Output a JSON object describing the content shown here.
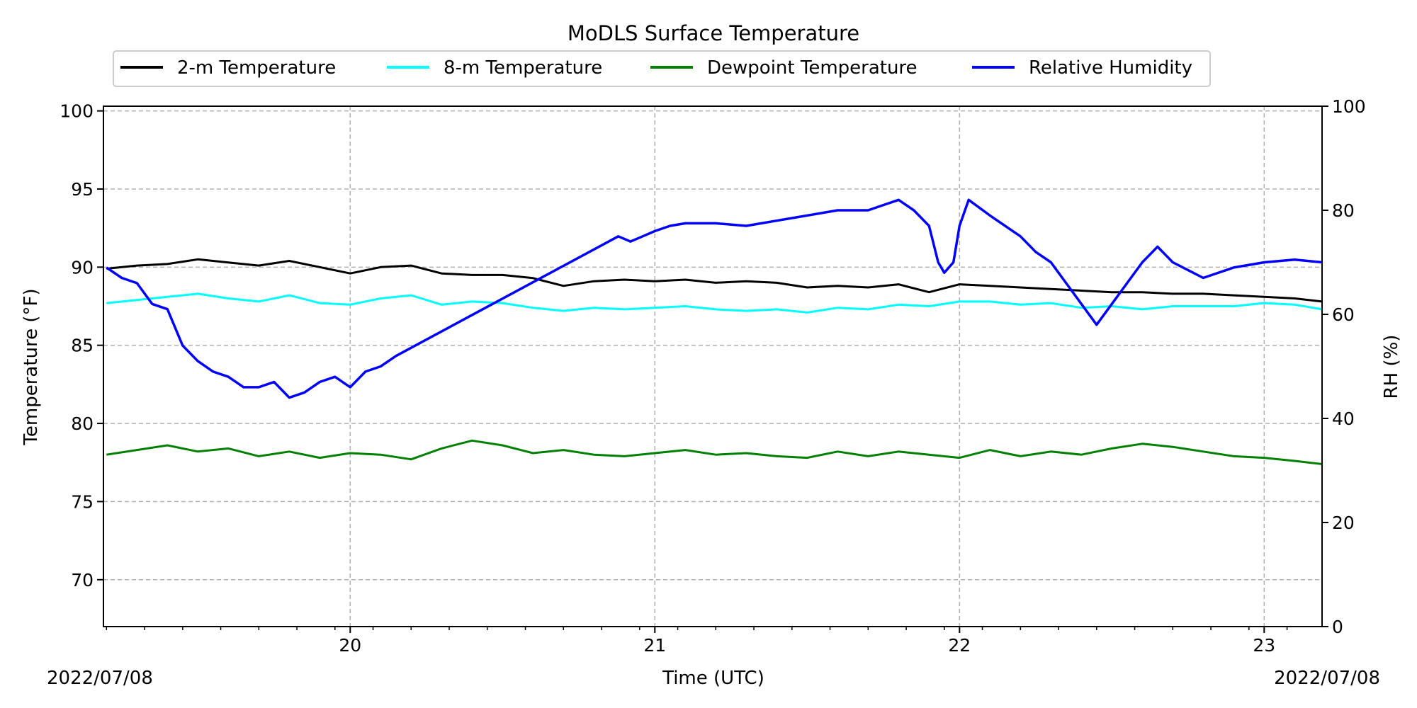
{
  "chart_data": {
    "type": "line",
    "title": "MoDLS Surface Temperature",
    "xlabel": "Time (UTC)",
    "ylabel_left": "Temperature ($^\\circ$F)",
    "ylabel_left_display": "Temperature (°F)",
    "ylabel_right": "RH (%)",
    "date_left": "2022/07/08",
    "date_right": "2022/07/08",
    "xlim": [
      19.19,
      23.19
    ],
    "ylim_left": [
      67,
      100.3
    ],
    "ylim_right": [
      0,
      100
    ],
    "x_ticks": [
      20,
      21,
      22,
      23
    ],
    "x_tick_labels": [
      "20",
      "21",
      "22",
      "23"
    ],
    "y_left_ticks": [
      70,
      75,
      80,
      85,
      90,
      95,
      100
    ],
    "y_left_tick_labels": [
      "70",
      "75",
      "80",
      "85",
      "90",
      "95",
      "100"
    ],
    "y_right_ticks": [
      0,
      20,
      40,
      60,
      80,
      100
    ],
    "y_right_tick_labels": [
      "0",
      "20",
      "40",
      "60",
      "80",
      "100"
    ],
    "grid": true,
    "legend_placement": "top-center",
    "series": [
      {
        "name": "2-m Temperature",
        "axis": "left",
        "color": "#000000",
        "x": [
          19.2,
          19.3,
          19.4,
          19.5,
          19.6,
          19.7,
          19.8,
          19.9,
          20.0,
          20.1,
          20.2,
          20.3,
          20.4,
          20.5,
          20.6,
          20.7,
          20.8,
          20.9,
          21.0,
          21.1,
          21.2,
          21.3,
          21.4,
          21.5,
          21.6,
          21.7,
          21.8,
          21.9,
          22.0,
          22.1,
          22.2,
          22.3,
          22.4,
          22.5,
          22.6,
          22.7,
          22.8,
          22.9,
          23.0,
          23.1,
          23.19
        ],
        "y": [
          89.9,
          90.1,
          90.2,
          90.5,
          90.3,
          90.1,
          90.4,
          90.0,
          89.6,
          90.0,
          90.1,
          89.6,
          89.5,
          89.5,
          89.3,
          88.8,
          89.1,
          89.2,
          89.1,
          89.2,
          89.0,
          89.1,
          89.0,
          88.7,
          88.8,
          88.7,
          88.9,
          88.4,
          88.9,
          88.8,
          88.7,
          88.6,
          88.5,
          88.4,
          88.4,
          88.3,
          88.3,
          88.2,
          88.1,
          88.0,
          87.8
        ]
      },
      {
        "name": "8-m Temperature",
        "axis": "left",
        "color": "#00ffff",
        "x": [
          19.2,
          19.3,
          19.4,
          19.5,
          19.6,
          19.7,
          19.8,
          19.9,
          20.0,
          20.1,
          20.2,
          20.3,
          20.4,
          20.5,
          20.6,
          20.7,
          20.8,
          20.9,
          21.0,
          21.1,
          21.2,
          21.3,
          21.4,
          21.5,
          21.6,
          21.7,
          21.8,
          21.9,
          22.0,
          22.1,
          22.2,
          22.3,
          22.4,
          22.5,
          22.6,
          22.7,
          22.8,
          22.9,
          23.0,
          23.1,
          23.19
        ],
        "y": [
          87.7,
          87.9,
          88.1,
          88.3,
          88.0,
          87.8,
          88.2,
          87.7,
          87.6,
          88.0,
          88.2,
          87.6,
          87.8,
          87.7,
          87.4,
          87.2,
          87.4,
          87.3,
          87.4,
          87.5,
          87.3,
          87.2,
          87.3,
          87.1,
          87.4,
          87.3,
          87.6,
          87.5,
          87.8,
          87.8,
          87.6,
          87.7,
          87.4,
          87.5,
          87.3,
          87.5,
          87.5,
          87.5,
          87.7,
          87.6,
          87.3
        ]
      },
      {
        "name": "Dewpoint Temperature",
        "axis": "left",
        "color": "#008000",
        "x": [
          19.2,
          19.3,
          19.4,
          19.5,
          19.6,
          19.7,
          19.8,
          19.9,
          20.0,
          20.1,
          20.2,
          20.3,
          20.4,
          20.5,
          20.6,
          20.7,
          20.8,
          20.9,
          21.0,
          21.1,
          21.2,
          21.3,
          21.4,
          21.5,
          21.6,
          21.7,
          21.8,
          21.9,
          22.0,
          22.1,
          22.2,
          22.3,
          22.4,
          22.5,
          22.6,
          22.7,
          22.8,
          22.9,
          23.0,
          23.1,
          23.19
        ],
        "y": [
          78.0,
          78.3,
          78.6,
          78.2,
          78.4,
          77.9,
          78.2,
          77.8,
          78.1,
          78.0,
          77.7,
          78.4,
          78.9,
          78.6,
          78.1,
          78.3,
          78.0,
          77.9,
          78.1,
          78.3,
          78.0,
          78.1,
          77.9,
          77.8,
          78.2,
          77.9,
          78.2,
          78.0,
          77.8,
          78.3,
          77.9,
          78.2,
          78.0,
          78.4,
          78.7,
          78.5,
          78.2,
          77.9,
          77.8,
          77.6,
          77.4
        ]
      },
      {
        "name": "Relative Humidity",
        "axis": "right",
        "color": "#0000ff",
        "x": [
          19.2,
          19.25,
          19.3,
          19.35,
          19.4,
          19.45,
          19.5,
          19.55,
          19.6,
          19.65,
          19.7,
          19.75,
          19.8,
          19.85,
          19.9,
          19.95,
          20.0,
          20.05,
          20.1,
          20.15,
          20.88,
          20.92,
          20.96,
          21.0,
          21.05,
          21.1,
          21.2,
          21.3,
          21.4,
          21.5,
          21.6,
          21.65,
          21.7,
          21.75,
          21.8,
          21.85,
          21.9,
          21.93,
          21.95,
          21.98,
          22.0,
          22.03,
          22.1,
          22.2,
          22.25,
          22.3,
          22.35,
          22.4,
          22.45,
          22.5,
          22.55,
          22.6,
          22.65,
          22.7,
          22.8,
          22.9,
          23.0,
          23.1,
          23.19
        ],
        "y": [
          69,
          67,
          66,
          62,
          61,
          54,
          51,
          49,
          48,
          46,
          46,
          47,
          44,
          45,
          47,
          48,
          46,
          49,
          50,
          52,
          75,
          74,
          75,
          76,
          77,
          77.5,
          77.5,
          77,
          78,
          79,
          80,
          80,
          80,
          81,
          82,
          80,
          77,
          70,
          68,
          70,
          77,
          82,
          79,
          75,
          72,
          70,
          66,
          62,
          58,
          62,
          66,
          70,
          73,
          70,
          67,
          69,
          70,
          70.5,
          70
        ]
      }
    ]
  }
}
